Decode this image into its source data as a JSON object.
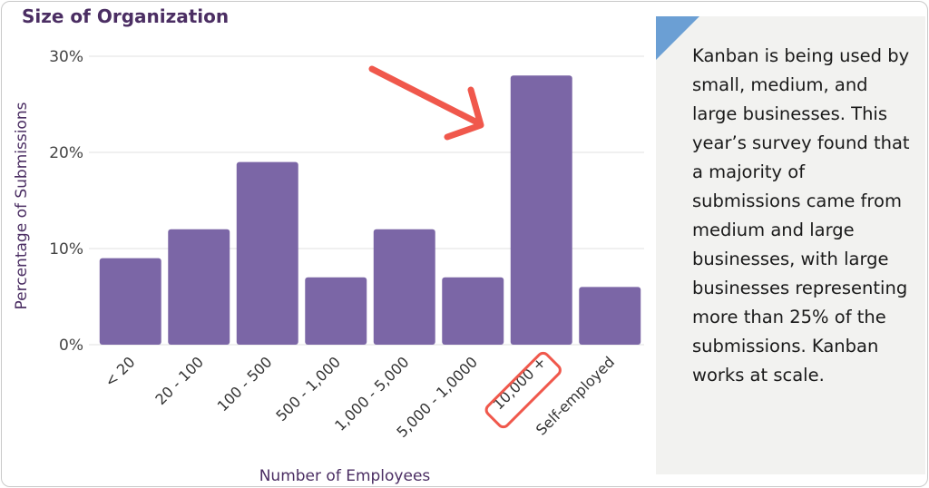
{
  "chart_data": {
    "type": "bar",
    "title": "Size of Organization",
    "xlabel": "Number of Employees",
    "ylabel": "Percentage of Submissions",
    "categories": [
      "< 20",
      "20 - 100",
      "100 - 500",
      "500 - 1,000",
      "1,000 - 5,000",
      "5,000 - 1,0000",
      "10,000 +",
      "Self-employed"
    ],
    "values": [
      9,
      12,
      19,
      7,
      12,
      7,
      28,
      6
    ],
    "ylim": [
      0,
      30
    ],
    "yticks": [
      "0%",
      "10%",
      "20%",
      "30%"
    ],
    "grid": true,
    "bar_color": "#7b66a6",
    "highlighted_category": "10,000 +",
    "annotation_color": "#f0584c"
  },
  "note": {
    "text": "Kanban is being used by small, medium, and large businesses. This year’s survey found that a majority of submissions came from medium and large businesses, with large businesses representing more than 25% of the submissions. Kanban works at scale.",
    "corner_color": "#6b9fd4"
  }
}
